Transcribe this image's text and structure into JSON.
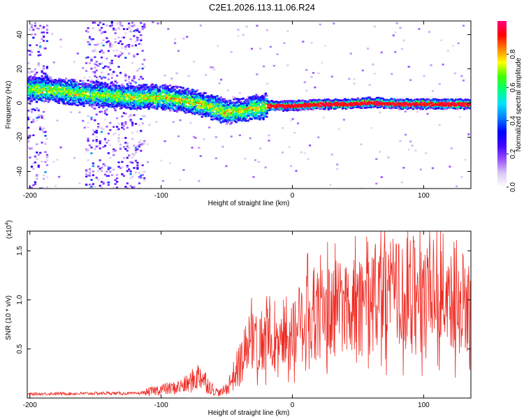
{
  "title": "C2E1.2026.113.11.06.R24",
  "chart_data": [
    {
      "type": "heatmap",
      "name": "spectrogram",
      "xlabel": "Height of straight line (km)",
      "ylabel": "Frequency (Hz)",
      "xlim": [
        -202,
        136
      ],
      "ylim": [
        -50,
        48
      ],
      "xticks": [
        "-200",
        "-100",
        "0",
        "100"
      ],
      "xtick_values": [
        -200,
        -100,
        0,
        100
      ],
      "yticks": [
        "40",
        "20",
        "0",
        "-20",
        "-40"
      ],
      "ytick_values": [
        40,
        20,
        0,
        -20,
        -40
      ],
      "colorbar": {
        "label": "Normalized spectral amplitude",
        "range": [
          0.0,
          1.0
        ],
        "ticks": [
          "0.0",
          "0.2",
          "0.4",
          "0.6",
          "0.8"
        ],
        "tick_values": [
          0.0,
          0.2,
          0.4,
          0.6,
          0.8
        ],
        "colors": [
          "#ffffff",
          "#dcc8f4",
          "#9a50ff",
          "#4000ff",
          "#0000ff",
          "#0080ff",
          "#00e0ff",
          "#00ff80",
          "#40ff00",
          "#ffff00",
          "#ff8000",
          "#ff0000",
          "#ff0080"
        ]
      },
      "ridge_center_hz": {
        "x": [
          -202,
          -180,
          -160,
          -140,
          -120,
          -100,
          -80,
          -60,
          -50,
          -45,
          -40,
          -35,
          -30,
          -25,
          -20,
          0,
          20,
          40,
          60,
          80,
          100,
          120,
          136
        ],
        "y": [
          9,
          8,
          6,
          5,
          4,
          4,
          2,
          -2,
          -5,
          -4,
          -4,
          -3,
          -2,
          -2,
          -1,
          -1,
          0,
          0,
          1,
          0,
          0,
          0,
          0
        ]
      },
      "scatter_bands_km": [
        [
          -202,
          -187
        ],
        [
          -158,
          -113
        ]
      ]
    },
    {
      "type": "line",
      "name": "snr",
      "xlabel": "Height of straight line (km)",
      "ylabel": "SNR (10 * v/v)",
      "scale_label": "(x10",
      "scale_exp": "4",
      "scale_close": ")",
      "xlim": [
        -202,
        136
      ],
      "ylim": [
        0,
        17000
      ],
      "xticks": [
        "-200",
        "-100",
        "0",
        "100"
      ],
      "xtick_values": [
        -200,
        -100,
        0,
        100
      ],
      "yticks": [
        "0.5",
        "1.0",
        "1.5"
      ],
      "ytick_values": [
        5000,
        10000,
        15000
      ],
      "color": "#ee2a22",
      "series": [
        {
          "name": "SNR",
          "x": [
            -202,
            -180,
            -160,
            -140,
            -120,
            -110,
            -100,
            -90,
            -80,
            -70,
            -65,
            -60,
            -55,
            -50,
            -45,
            -40,
            -35,
            -30,
            -25,
            -20,
            -10,
            0,
            10,
            20,
            30,
            40,
            50,
            60,
            70,
            80,
            90,
            100,
            110,
            120,
            125,
            130,
            136
          ],
          "y": [
            400,
            450,
            450,
            500,
            450,
            600,
            900,
            1000,
            1400,
            2400,
            1500,
            800,
            500,
            1000,
            2200,
            3400,
            4700,
            5600,
            5800,
            6000,
            6500,
            7000,
            8200,
            8800,
            9000,
            9300,
            9600,
            9600,
            10400,
            10500,
            10800,
            10900,
            11000,
            10800,
            10000,
            8600,
            8800
          ]
        }
      ]
    }
  ]
}
